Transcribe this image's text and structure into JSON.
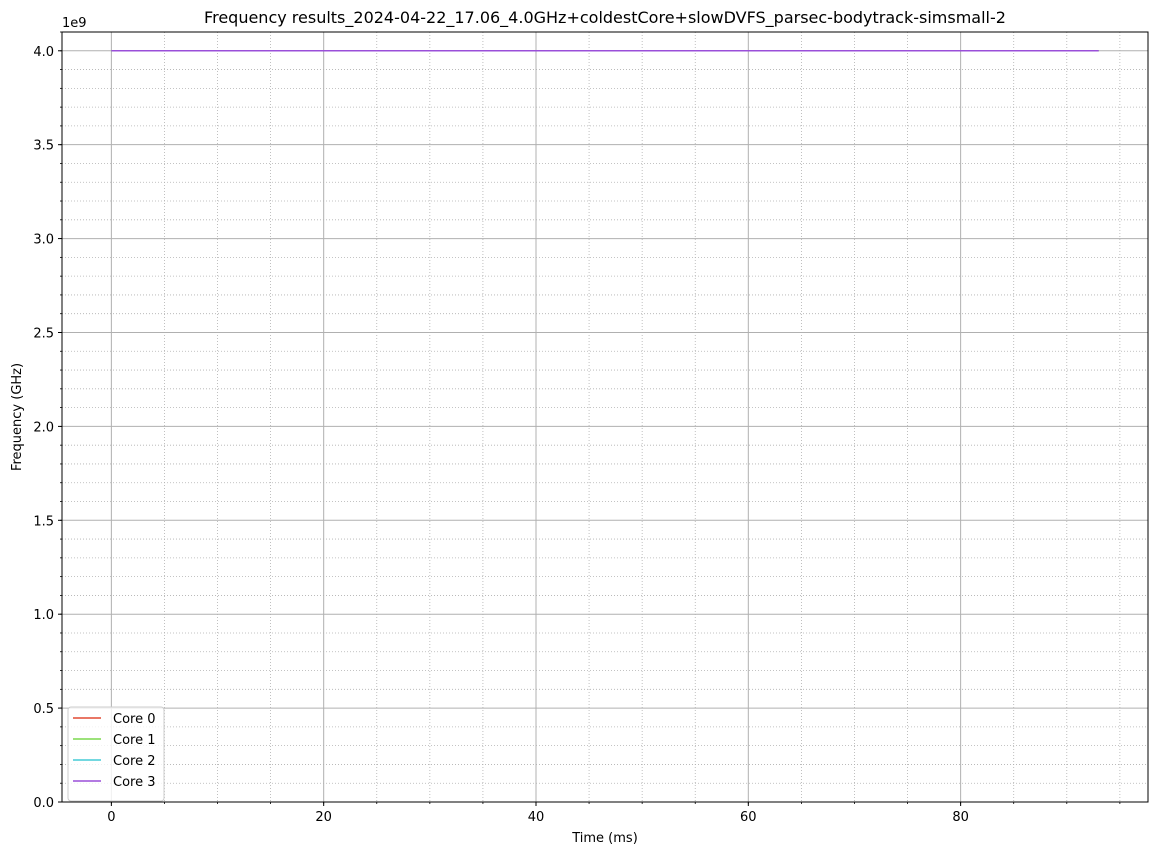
{
  "chart_data": {
    "type": "line",
    "title": "Frequency results_2024-04-22_17.06_4.0GHz+coldestCore+slowDVFS_parsec-bodytrack-simsmall-2",
    "xlabel": "Time (ms)",
    "ylabel": "Frequency (GHz)",
    "y_offset_label": "1e9",
    "xlim": [
      -4.65,
      97.65
    ],
    "ylim": [
      0,
      4100000000
    ],
    "x_ticks": [
      0,
      20,
      40,
      60,
      80
    ],
    "x_tick_labels": [
      "0",
      "20",
      "40",
      "60",
      "80"
    ],
    "y_ticks": [
      0,
      500000000,
      1000000000,
      1500000000,
      2000000000,
      2500000000,
      3000000000,
      3500000000,
      4000000000
    ],
    "y_tick_labels": [
      "0.0",
      "0.5",
      "1.0",
      "1.5",
      "2.0",
      "2.5",
      "3.0",
      "3.5",
      "4.0"
    ],
    "x_minor_step": 5,
    "y_minor_step": 100000000,
    "grid": "major solid, minor dotted",
    "legend_position": "lower-left",
    "series": [
      {
        "name": "Core 0",
        "color": "#e24a33",
        "x": [
          0,
          93
        ],
        "y": [
          4000000000,
          4000000000
        ]
      },
      {
        "name": "Core 1",
        "color": "#7bd94f",
        "x": [
          0,
          93
        ],
        "y": [
          4000000000,
          4000000000
        ]
      },
      {
        "name": "Core 2",
        "color": "#45ccd6",
        "x": [
          0,
          93
        ],
        "y": [
          4000000000,
          4000000000
        ]
      },
      {
        "name": "Core 3",
        "color": "#9a4fd9",
        "x": [
          0,
          93
        ],
        "y": [
          4000000000,
          4000000000
        ]
      }
    ]
  }
}
